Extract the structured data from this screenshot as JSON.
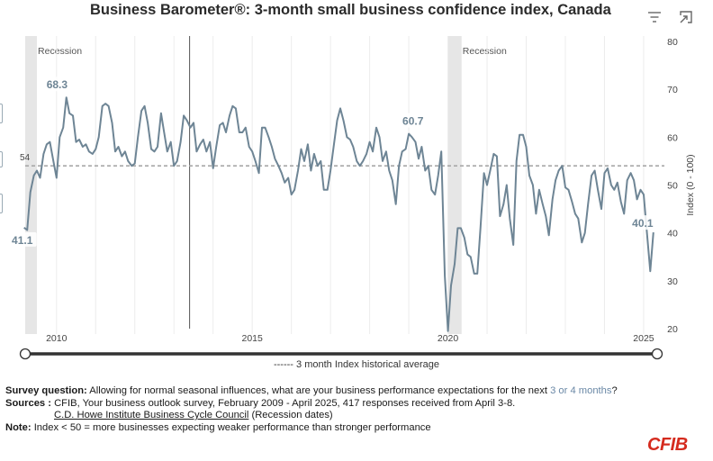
{
  "header": {
    "title": "Business Barometer®: 3-month small business confidence index, Canada"
  },
  "icons": {
    "filter": "filter-icon",
    "expand": "expand-icon"
  },
  "colors": {
    "series": "#6e8595",
    "average_line": "#a8a8a8",
    "recession_band": "#e6e6e6",
    "label_text": "#6e8595",
    "accent_text": "#6a88a6",
    "brand": "#d52b1e"
  },
  "chart_data": {
    "type": "line",
    "ylabel": "Index (0 - 100)",
    "ylim": [
      20,
      80
    ],
    "yticks": [
      20,
      30,
      40,
      50,
      60,
      70,
      80
    ],
    "xlim": [
      2009.2,
      2025.3
    ],
    "xticks": [
      2010,
      2015,
      2020,
      2025
    ],
    "x_tick_labels": [
      "2010",
      "2015",
      "2020",
      "2025"
    ],
    "grid": "vertical",
    "legend": "bottom",
    "average": {
      "label": "54",
      "value": 54,
      "legend": "------ 3 month Index historical average"
    },
    "recessions": [
      {
        "label": "Recession",
        "start": 2009.2,
        "end": 2009.5
      },
      {
        "label": "Recession",
        "start": 2020.0,
        "end": 2020.35
      }
    ],
    "marker_line_x": 2013.4,
    "annotations": [
      {
        "text": "41.1",
        "x": 2009.17,
        "y": 41.1
      },
      {
        "text": "68.3",
        "x": 2009.83,
        "y": 68.3
      },
      {
        "text": "60.7",
        "x": 2018.83,
        "y": 60.7
      },
      {
        "text": "40.1",
        "x": 2025.25,
        "y": 40.1
      }
    ],
    "series": [
      {
        "values": [
          [
            2009.17,
            41.1
          ],
          [
            2009.25,
            40.6
          ],
          [
            2009.33,
            48.5
          ],
          [
            2009.42,
            52.0
          ],
          [
            2009.5,
            53.0
          ],
          [
            2009.58,
            51.5
          ],
          [
            2009.67,
            56.5
          ],
          [
            2009.75,
            58.5
          ],
          [
            2009.83,
            59.0
          ],
          [
            2009.92,
            55.0
          ],
          [
            2010.0,
            51.5
          ],
          [
            2010.08,
            60.0
          ],
          [
            2010.17,
            62.0
          ],
          [
            2010.25,
            68.3
          ],
          [
            2010.33,
            65.0
          ],
          [
            2010.42,
            64.5
          ],
          [
            2010.5,
            59.0
          ],
          [
            2010.58,
            59.5
          ],
          [
            2010.67,
            58.0
          ],
          [
            2010.75,
            58.5
          ],
          [
            2010.83,
            57.0
          ],
          [
            2010.92,
            56.5
          ],
          [
            2011.0,
            57.5
          ],
          [
            2011.08,
            60.0
          ],
          [
            2011.17,
            66.5
          ],
          [
            2011.25,
            67.0
          ],
          [
            2011.33,
            66.5
          ],
          [
            2011.42,
            63.0
          ],
          [
            2011.5,
            57.0
          ],
          [
            2011.58,
            58.0
          ],
          [
            2011.67,
            56.0
          ],
          [
            2011.75,
            57.0
          ],
          [
            2011.83,
            55.0
          ],
          [
            2011.92,
            54.0
          ],
          [
            2012.0,
            54.5
          ],
          [
            2012.08,
            60.0
          ],
          [
            2012.17,
            65.5
          ],
          [
            2012.25,
            66.5
          ],
          [
            2012.33,
            63.0
          ],
          [
            2012.42,
            57.5
          ],
          [
            2012.5,
            57.0
          ],
          [
            2012.58,
            58.0
          ],
          [
            2012.67,
            65.0
          ],
          [
            2012.75,
            61.0
          ],
          [
            2012.83,
            57.0
          ],
          [
            2012.92,
            59.0
          ],
          [
            2013.0,
            54.0
          ],
          [
            2013.08,
            55.0
          ],
          [
            2013.17,
            59.0
          ],
          [
            2013.25,
            64.5
          ],
          [
            2013.33,
            63.5
          ],
          [
            2013.42,
            62.0
          ],
          [
            2013.5,
            63.0
          ],
          [
            2013.58,
            57.0
          ],
          [
            2013.67,
            58.5
          ],
          [
            2013.75,
            59.5
          ],
          [
            2013.83,
            57.0
          ],
          [
            2013.92,
            59.0
          ],
          [
            2014.0,
            53.5
          ],
          [
            2014.08,
            58.0
          ],
          [
            2014.17,
            62.5
          ],
          [
            2014.25,
            63.0
          ],
          [
            2014.33,
            61.0
          ],
          [
            2014.42,
            64.5
          ],
          [
            2014.5,
            66.5
          ],
          [
            2014.58,
            66.0
          ],
          [
            2014.67,
            61.0
          ],
          [
            2014.75,
            61.0
          ],
          [
            2014.83,
            62.0
          ],
          [
            2014.92,
            58.0
          ],
          [
            2015.0,
            57.0
          ],
          [
            2015.08,
            55.0
          ],
          [
            2015.17,
            52.5
          ],
          [
            2015.25,
            62.0
          ],
          [
            2015.33,
            62.0
          ],
          [
            2015.42,
            60.0
          ],
          [
            2015.5,
            58.0
          ],
          [
            2015.58,
            55.5
          ],
          [
            2015.67,
            54.0
          ],
          [
            2015.75,
            52.5
          ],
          [
            2015.83,
            50.5
          ],
          [
            2015.92,
            51.5
          ],
          [
            2016.0,
            48.0
          ],
          [
            2016.08,
            49.0
          ],
          [
            2016.17,
            53.0
          ],
          [
            2016.25,
            57.5
          ],
          [
            2016.33,
            55.0
          ],
          [
            2016.42,
            58.5
          ],
          [
            2016.5,
            53.0
          ],
          [
            2016.58,
            56.5
          ],
          [
            2016.67,
            54.0
          ],
          [
            2016.75,
            55.0
          ],
          [
            2016.83,
            49.0
          ],
          [
            2016.92,
            49.0
          ],
          [
            2017.0,
            53.0
          ],
          [
            2017.08,
            58.0
          ],
          [
            2017.17,
            63.5
          ],
          [
            2017.25,
            66.0
          ],
          [
            2017.33,
            63.5
          ],
          [
            2017.42,
            60.0
          ],
          [
            2017.5,
            59.5
          ],
          [
            2017.58,
            58.0
          ],
          [
            2017.67,
            55.0
          ],
          [
            2017.75,
            54.0
          ],
          [
            2017.83,
            55.0
          ],
          [
            2017.92,
            56.5
          ],
          [
            2018.0,
            59.0
          ],
          [
            2018.08,
            57.0
          ],
          [
            2018.17,
            62.0
          ],
          [
            2018.25,
            60.0
          ],
          [
            2018.33,
            55.0
          ],
          [
            2018.42,
            57.0
          ],
          [
            2018.5,
            53.0
          ],
          [
            2018.58,
            51.0
          ],
          [
            2018.67,
            46.0
          ],
          [
            2018.75,
            54.0
          ],
          [
            2018.83,
            57.0
          ],
          [
            2018.92,
            57.5
          ],
          [
            2019.0,
            60.7
          ],
          [
            2019.08,
            60.0
          ],
          [
            2019.17,
            59.0
          ],
          [
            2019.25,
            55.5
          ],
          [
            2019.33,
            58.0
          ],
          [
            2019.42,
            53.0
          ],
          [
            2019.5,
            54.0
          ],
          [
            2019.58,
            49.0
          ],
          [
            2019.67,
            48.0
          ],
          [
            2019.75,
            52.0
          ],
          [
            2019.83,
            57.0
          ],
          [
            2019.92,
            31.0
          ],
          [
            2020.0,
            19.5
          ],
          [
            2020.08,
            29.0
          ],
          [
            2020.17,
            33.5
          ],
          [
            2020.25,
            41.0
          ],
          [
            2020.33,
            41.0
          ],
          [
            2020.42,
            39.0
          ],
          [
            2020.5,
            35.5
          ],
          [
            2020.58,
            35.0
          ],
          [
            2020.67,
            31.5
          ],
          [
            2020.75,
            31.5
          ],
          [
            2020.83,
            41.0
          ],
          [
            2020.92,
            52.5
          ],
          [
            2021.0,
            50.0
          ],
          [
            2021.08,
            53.0
          ],
          [
            2021.17,
            56.5
          ],
          [
            2021.25,
            56.0
          ],
          [
            2021.33,
            43.5
          ],
          [
            2021.42,
            46.0
          ],
          [
            2021.5,
            50.0
          ],
          [
            2021.58,
            43.0
          ],
          [
            2021.67,
            37.5
          ],
          [
            2021.75,
            55.0
          ],
          [
            2021.83,
            60.5
          ],
          [
            2021.92,
            60.5
          ],
          [
            2022.0,
            58.0
          ],
          [
            2022.08,
            52.0
          ],
          [
            2022.17,
            50.0
          ],
          [
            2022.25,
            44.0
          ],
          [
            2022.33,
            49.0
          ],
          [
            2022.42,
            46.0
          ],
          [
            2022.5,
            43.5
          ],
          [
            2022.58,
            39.5
          ],
          [
            2022.67,
            47.0
          ],
          [
            2022.75,
            51.0
          ],
          [
            2022.83,
            53.0
          ],
          [
            2022.92,
            54.0
          ],
          [
            2023.0,
            49.5
          ],
          [
            2023.08,
            49.0
          ],
          [
            2023.17,
            46.5
          ],
          [
            2023.25,
            44.0
          ],
          [
            2023.33,
            43.0
          ],
          [
            2023.42,
            38.0
          ],
          [
            2023.5,
            40.0
          ],
          [
            2023.58,
            46.0
          ],
          [
            2023.67,
            52.0
          ],
          [
            2023.75,
            53.0
          ],
          [
            2023.83,
            49.0
          ],
          [
            2023.92,
            45.0
          ],
          [
            2024.0,
            52.5
          ],
          [
            2024.08,
            53.5
          ],
          [
            2024.17,
            50.0
          ],
          [
            2024.25,
            49.0
          ],
          [
            2024.33,
            50.5
          ],
          [
            2024.42,
            46.5
          ],
          [
            2024.5,
            44.0
          ],
          [
            2024.58,
            51.0
          ],
          [
            2024.67,
            52.5
          ],
          [
            2024.75,
            51.0
          ],
          [
            2024.83,
            47.0
          ],
          [
            2024.92,
            49.0
          ],
          [
            2025.0,
            48.0
          ],
          [
            2025.08,
            40.5
          ],
          [
            2025.17,
            32.0
          ],
          [
            2025.25,
            40.1
          ]
        ]
      }
    ]
  },
  "legend": {
    "label": "------ 3 month Index historical average"
  },
  "notes": {
    "survey_label": "Survey question:",
    "survey_text": "Allowing for normal seasonal influences, what are your business performance expectations for the next",
    "survey_accent": "3 or 4 months",
    "survey_end": "?",
    "sources_label": "Sources :",
    "sources_text": "CFIB, Your business outlook survey, February 2009 - April 2025, 417 responses received from April 3-8.",
    "howe_link": "C.D. Howe Institute Business Cycle Council",
    "howe_text": "(Recession dates)",
    "note_label": "Note:",
    "note_text": "Index < 50 = more businesses expecting weaker performance than stronger performance"
  },
  "logo": {
    "text": "CFIB"
  }
}
